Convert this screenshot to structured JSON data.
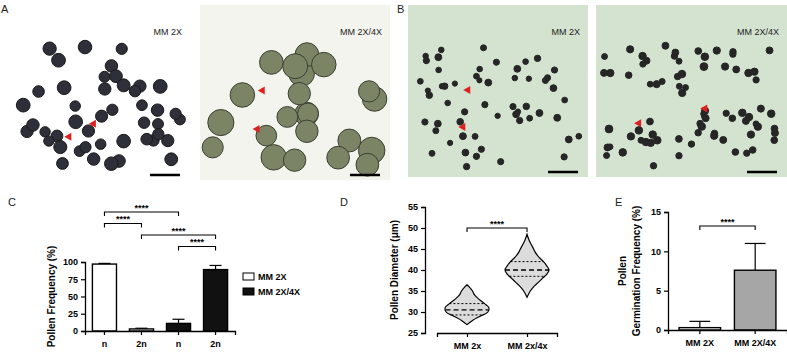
{
  "figure": {
    "images": [
      {
        "panel": "A",
        "labels": [
          "MM 2X",
          "MM 2X/4X"
        ]
      },
      {
        "panel": "B",
        "labels": [
          "MM 2X",
          "MM 2X/4X"
        ]
      }
    ]
  },
  "chart_data": [
    {
      "type": "bar",
      "title": "C",
      "y_label": "Pollen Frequency (%)",
      "categories": [
        "n",
        "2n",
        "n",
        "2n"
      ],
      "series": [
        {
          "name": "MM 2X",
          "color": "#ffffff",
          "values": [
            97,
            3,
            null,
            null
          ],
          "errors": [
            1,
            1,
            null,
            null
          ]
        },
        {
          "name": "MM 2X/4X",
          "color": "#111111",
          "values": [
            null,
            null,
            11,
            89
          ],
          "errors": [
            null,
            null,
            6,
            6
          ]
        }
      ],
      "ylim": [
        0,
        100
      ],
      "yticks": [
        0,
        25,
        50,
        75,
        100
      ],
      "legend": "right",
      "comparisons": [
        {
          "pair": [
            0,
            2
          ],
          "label": "****"
        },
        {
          "pair": [
            0,
            1
          ],
          "label": "****"
        },
        {
          "pair": [
            1,
            3
          ],
          "label": "****"
        },
        {
          "pair": [
            2,
            3
          ],
          "label": "****"
        }
      ]
    },
    {
      "type": "violin",
      "title": "D",
      "y_label": "Pollen Diameter (μm)",
      "categories": [
        "MM 2x",
        "MM 2x/4x"
      ],
      "series": [
        {
          "density_y": [
            27,
            28,
            29,
            30,
            31,
            32,
            33,
            34,
            35,
            36,
            36.5
          ],
          "density": [
            0,
            0.25,
            0.6,
            0.95,
            1,
            0.8,
            0.55,
            0.35,
            0.25,
            0.1,
            0
          ],
          "median": 30.5,
          "quartiles": [
            29.3,
            32
          ]
        },
        {
          "density_y": [
            33.5,
            35,
            36,
            37,
            38,
            39,
            40,
            41,
            42,
            43,
            44,
            45,
            46,
            47,
            48.5
          ],
          "density": [
            0,
            0.15,
            0.3,
            0.5,
            0.7,
            0.9,
            1,
            0.9,
            0.75,
            0.55,
            0.4,
            0.3,
            0.2,
            0.1,
            0
          ],
          "median": 40,
          "quartiles": [
            38.5,
            42
          ]
        }
      ],
      "ylim": [
        25,
        55
      ],
      "yticks": [
        25,
        30,
        35,
        40,
        45,
        50,
        55
      ],
      "comparisons": [
        {
          "pair": [
            0,
            1
          ],
          "label": "****"
        }
      ]
    },
    {
      "type": "bar",
      "title": "E",
      "y_label": [
        "Pollen",
        "Germination Frequency (%)"
      ],
      "categories": [
        "MM 2X",
        "MM 2X/4X"
      ],
      "values": [
        0.3,
        7.6
      ],
      "errors": [
        0.8,
        3.4
      ],
      "colors": [
        "#ffffff",
        "#a6a6a6"
      ],
      "ylim": [
        0,
        15
      ],
      "yticks": [
        0,
        5,
        10,
        15
      ],
      "comparisons": [
        {
          "pair": [
            0,
            1
          ],
          "label": "****"
        }
      ]
    }
  ]
}
